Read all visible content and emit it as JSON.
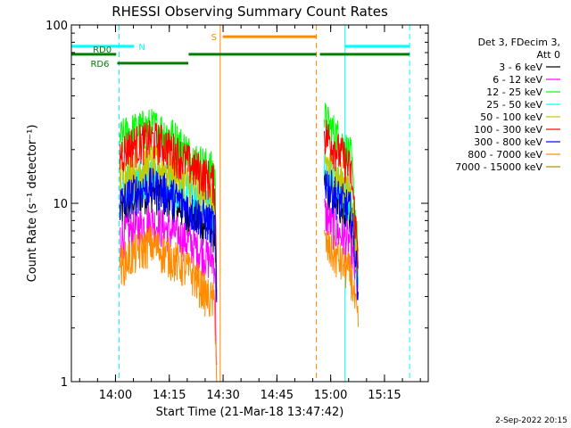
{
  "chart_data": {
    "type": "line",
    "title": "RHESSI Observing Summary Count Rates",
    "xlabel": "Start Time (21-Mar-18 13:47:42)",
    "ylabel": "Count Rate (s⁻¹ detector⁻¹)",
    "y_scale": "log",
    "ylim": [
      1,
      100
    ],
    "xlim_minutes_after_start": [
      0,
      99.5
    ],
    "x_ticks": [
      {
        "label": "14:00",
        "minutes": 12.3
      },
      {
        "label": "14:15",
        "minutes": 27.3
      },
      {
        "label": "14:30",
        "minutes": 42.3
      },
      {
        "label": "14:45",
        "minutes": 57.3
      },
      {
        "label": "15:00",
        "minutes": 72.3
      },
      {
        "label": "15:15",
        "minutes": 87.3
      }
    ],
    "y_ticks": [
      {
        "label": "1",
        "value": 1
      },
      {
        "label": "10",
        "value": 10
      },
      {
        "label": "100",
        "value": 100
      }
    ],
    "legend_header": [
      "Det 3, FDecim 3,",
      "Att 0"
    ],
    "legend_position": "right",
    "series": [
      {
        "name": "3 - 6 keV",
        "color": "#000000",
        "segments": [
          {
            "t": [
              13.5,
              16,
              19,
              22,
              25,
              28,
              31,
              34,
              36,
              38,
              40,
              40.5
            ],
            "v": [
              9,
              10,
              11.5,
              12,
              11.5,
              10.5,
              9.5,
              8.5,
              8,
              7.5,
              7,
              2.5
            ]
          },
          {
            "t": [
              70.5,
              72,
              74,
              76,
              78,
              80
            ],
            "v": [
              13,
              11.5,
              10.5,
              9.5,
              8.5,
              3.5
            ]
          }
        ]
      },
      {
        "name": "6 - 12 keV",
        "color": "#ff00ff",
        "segments": [
          {
            "t": [
              13.5,
              16,
              19,
              22,
              25,
              28,
              31,
              34,
              36,
              38,
              40,
              40.5
            ],
            "v": [
              6.5,
              7,
              7.5,
              8,
              7.5,
              7,
              6.5,
              5.8,
              5.5,
              5,
              4.8,
              1.2
            ]
          },
          {
            "t": [
              70.5,
              72,
              74,
              76,
              78,
              80
            ],
            "v": [
              9,
              8,
              7,
              6.5,
              6,
              3
            ]
          }
        ]
      },
      {
        "name": "12 - 25 keV",
        "color": "#00ff00",
        "segments": [
          {
            "t": [
              13.5,
              16,
              19,
              22,
              25,
              28,
              31,
              34,
              36,
              38,
              40,
              40.5
            ],
            "v": [
              23,
              25,
              26,
              27,
              26,
              24,
              21,
              18,
              17,
              16,
              15,
              4
            ]
          },
          {
            "t": [
              70.5,
              72,
              74,
              76,
              78,
              80
            ],
            "v": [
              30,
              27,
              24,
              21,
              18,
              5
            ]
          }
        ]
      },
      {
        "name": "25 - 50 keV",
        "color": "#00ffff",
        "segments": [
          {
            "t": [
              13.5,
              16,
              19,
              22,
              25,
              28,
              31,
              34,
              36,
              38,
              40,
              40.5
            ],
            "v": [
              12,
              13,
              14,
              15,
              14,
              13,
              12,
              11,
              10,
              9.5,
              9,
              3
            ]
          },
          {
            "t": [
              70.5,
              72,
              74,
              76,
              78,
              80
            ],
            "v": [
              16,
              15,
              13,
              12,
              10,
              4
            ]
          }
        ]
      },
      {
        "name": "50 - 100 keV",
        "color": "#c8c800",
        "segments": [
          {
            "t": [
              13.5,
              16,
              19,
              22,
              25,
              28,
              31,
              34,
              36,
              38,
              40,
              40.5
            ],
            "v": [
              14,
              15,
              16,
              17,
              16,
              15,
              13.5,
              12.5,
              11.5,
              10.5,
              10,
              3
            ]
          },
          {
            "t": [
              70.5,
              72,
              74,
              76,
              78,
              80
            ],
            "v": [
              18,
              16,
              14,
              13,
              11,
              4
            ]
          }
        ]
      },
      {
        "name": "100 - 300 keV",
        "color": "#ff0000",
        "segments": [
          {
            "t": [
              13.5,
              16,
              19,
              22,
              25,
              28,
              31,
              34,
              36,
              38,
              40,
              40.5
            ],
            "v": [
              19,
              21,
              22,
              23,
              22,
              20,
              18,
              16,
              15,
              14,
              13,
              3.5
            ]
          },
          {
            "t": [
              70.5,
              72,
              74,
              76,
              78,
              80
            ],
            "v": [
              25,
              23,
              20,
              18,
              15,
              5
            ]
          }
        ]
      },
      {
        "name": "300 - 800 keV",
        "color": "#0000ff",
        "segments": [
          {
            "t": [
              13.5,
              16,
              19,
              22,
              25,
              28,
              31,
              34,
              36,
              38,
              40,
              40.5
            ],
            "v": [
              10,
              11,
              12,
              12.5,
              12,
              11,
              10,
              9,
              8.5,
              8,
              7.5,
              2.5
            ]
          },
          {
            "t": [
              70.5,
              72,
              74,
              76,
              78,
              80
            ],
            "v": [
              14,
              12.5,
              11,
              10,
              9,
              3.5
            ]
          }
        ]
      },
      {
        "name": "800 - 7000 keV",
        "color": "#ff8c00",
        "segments": [
          {
            "t": [
              13.5,
              16,
              19,
              22,
              25,
              28,
              31,
              34,
              36,
              38,
              40,
              40.5
            ],
            "v": [
              4.5,
              5,
              5.5,
              6,
              5.5,
              5,
              4.5,
              4,
              3.5,
              3,
              2.8,
              1
            ]
          },
          {
            "t": [
              70.5,
              72,
              74,
              76,
              78,
              80
            ],
            "v": [
              6,
              5.5,
              5,
              4.5,
              4,
              2
            ]
          }
        ]
      },
      {
        "name": "7000 - 15000 keV",
        "color": "#b8860b",
        "segments": []
      }
    ],
    "markers": {
      "vertical_lines": [
        {
          "minutes": 0,
          "color": "#00ffff",
          "style": "solid"
        },
        {
          "minutes": 13.3,
          "color": "#00ffff",
          "style": "dashed"
        },
        {
          "minutes": 41.5,
          "color": "#ff8c00",
          "style": "solid"
        },
        {
          "minutes": 68.3,
          "color": "#ff8c00",
          "style": "dashed"
        },
        {
          "minutes": 76.3,
          "color": "#00ffff",
          "style": "solid"
        },
        {
          "minutes": 94.3,
          "color": "#00ffff",
          "style": "dashed"
        }
      ],
      "bars": [
        {
          "label": "N",
          "color": "#00ffff",
          "intervals": [
            [
              0,
              17.5
            ],
            [
              76.3,
              94.3
            ]
          ],
          "y_value": 76
        },
        {
          "label": "S",
          "color": "#ff8c00",
          "intervals": [
            [
              42.2,
              68.3
            ]
          ],
          "y_value": 86
        },
        {
          "label": "RD0",
          "color": "#008000",
          "intervals": [
            [
              0,
              12.5
            ],
            [
              32.7,
              68.3
            ],
            [
              69.3,
              77.5
            ],
            [
              77.5,
              94.3
            ]
          ],
          "y_value": 68.5
        },
        {
          "label": "RD6",
          "color": "#008000",
          "intervals": [
            [
              12.8,
              32.6
            ]
          ],
          "y_value": 61
        }
      ]
    }
  },
  "footer_date": "2-Sep-2022 20:15"
}
